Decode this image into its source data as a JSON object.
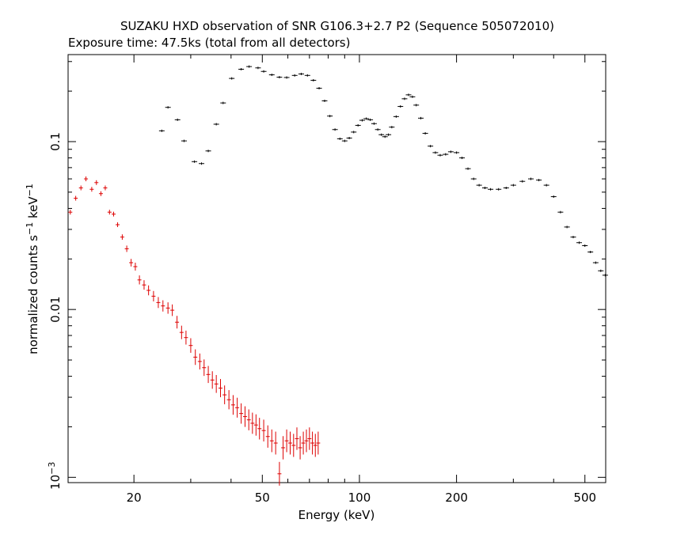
{
  "chart_data": {
    "type": "scatter",
    "title": "SUZAKU HXD observation of SNR G106.3+2.7 P2 (Sequence 505072010)",
    "subtitle": "Exposure time: 47.5ks (total from all detectors)",
    "xlabel": "Energy (keV)",
    "ylabel_parts": [
      "normalized counts s",
      "−1",
      " keV",
      "−1"
    ],
    "x_scale": "log",
    "y_scale": "log",
    "xlim": [
      12.5,
      580
    ],
    "ylim": [
      0.00093,
      0.33
    ],
    "x_ticks": [
      {
        "value": 20,
        "label": "20"
      },
      {
        "value": 50,
        "label": "50"
      },
      {
        "value": 100,
        "label": "100"
      },
      {
        "value": 200,
        "label": "200"
      },
      {
        "value": 500,
        "label": "500"
      }
    ],
    "y_ticks": [
      {
        "value": 0.1,
        "label": "0.1"
      },
      {
        "value": 0.01,
        "label": "0.01"
      }
    ],
    "y_tick_power": {
      "value": 0.001,
      "base": "10",
      "exp": "−3"
    },
    "series": [
      {
        "color": "#000000",
        "points": [
          [
            24.4,
            0.116
          ],
          [
            25.5,
            0.16
          ],
          [
            27.3,
            0.135
          ],
          [
            28.6,
            0.101
          ],
          [
            30.8,
            0.076
          ],
          [
            32.4,
            0.074
          ],
          [
            34.0,
            0.088
          ],
          [
            36.0,
            0.127
          ],
          [
            37.8,
            0.17
          ],
          [
            40.2,
            0.238
          ],
          [
            43.0,
            0.27
          ],
          [
            45.5,
            0.28
          ],
          [
            48.5,
            0.275
          ],
          [
            50.5,
            0.262
          ],
          [
            53.5,
            0.25
          ],
          [
            56.5,
            0.242
          ],
          [
            59.5,
            0.241
          ],
          [
            63.0,
            0.248
          ],
          [
            66.0,
            0.253
          ],
          [
            69.0,
            0.248
          ],
          [
            72.0,
            0.232
          ],
          [
            75.0,
            0.208
          ],
          [
            78.0,
            0.175
          ],
          [
            81.0,
            0.142
          ],
          [
            84.0,
            0.118
          ],
          [
            87.0,
            0.104
          ],
          [
            90.0,
            0.101
          ],
          [
            93.0,
            0.105
          ],
          [
            96.0,
            0.114
          ],
          [
            99.0,
            0.125
          ],
          [
            102.0,
            0.134
          ],
          [
            105.0,
            0.137
          ],
          [
            108.0,
            0.135
          ],
          [
            111.0,
            0.128
          ],
          [
            114.0,
            0.118
          ],
          [
            117.0,
            0.11
          ],
          [
            120.0,
            0.107
          ],
          [
            123.0,
            0.11
          ],
          [
            126.0,
            0.122
          ],
          [
            130.0,
            0.141
          ],
          [
            134.0,
            0.162
          ],
          [
            138.0,
            0.18
          ],
          [
            142.0,
            0.19
          ],
          [
            146.0,
            0.185
          ],
          [
            150.0,
            0.165
          ],
          [
            155.0,
            0.138
          ],
          [
            160.0,
            0.112
          ],
          [
            166.0,
            0.094
          ],
          [
            172.0,
            0.086
          ],
          [
            178.0,
            0.083
          ],
          [
            185.0,
            0.084
          ],
          [
            192.0,
            0.087
          ],
          [
            200.0,
            0.086
          ],
          [
            208.0,
            0.08
          ],
          [
            217.0,
            0.069
          ],
          [
            226.0,
            0.06
          ],
          [
            235.0,
            0.055
          ],
          [
            245.0,
            0.053
          ],
          [
            255.0,
            0.052
          ],
          [
            270.0,
            0.052
          ],
          [
            285.0,
            0.053
          ],
          [
            300.0,
            0.055
          ],
          [
            320.0,
            0.058
          ],
          [
            340.0,
            0.06
          ],
          [
            360.0,
            0.059
          ],
          [
            380.0,
            0.055
          ],
          [
            400.0,
            0.047
          ],
          [
            420.0,
            0.038
          ],
          [
            440.0,
            0.031
          ],
          [
            460.0,
            0.027
          ],
          [
            480.0,
            0.025
          ],
          [
            500.0,
            0.024
          ],
          [
            520.0,
            0.022
          ],
          [
            540.0,
            0.019
          ],
          [
            560.0,
            0.017
          ],
          [
            578.0,
            0.016
          ]
        ]
      },
      {
        "color": "#dd0000",
        "points": [
          [
            12.7,
            0.038
          ],
          [
            13.2,
            0.046
          ],
          [
            13.7,
            0.053
          ],
          [
            14.2,
            0.06
          ],
          [
            14.8,
            0.052
          ],
          [
            15.3,
            0.057
          ],
          [
            15.8,
            0.049
          ],
          [
            16.3,
            0.053
          ],
          [
            16.8,
            0.038
          ],
          [
            17.3,
            0.037
          ],
          [
            17.8,
            0.032
          ],
          [
            18.4,
            0.027
          ],
          [
            19.0,
            0.023
          ],
          [
            19.6,
            0.019
          ],
          [
            20.2,
            0.018
          ],
          [
            20.8,
            0.015
          ],
          [
            21.5,
            0.014
          ],
          [
            22.2,
            0.013
          ],
          [
            23.0,
            0.012
          ],
          [
            23.8,
            0.011
          ],
          [
            24.6,
            0.0105
          ],
          [
            25.5,
            0.0102
          ],
          [
            26.3,
            0.0099
          ],
          [
            27.2,
            0.0084
          ],
          [
            28.1,
            0.0073
          ],
          [
            29.0,
            0.0068
          ],
          [
            30.0,
            0.0061
          ],
          [
            31.0,
            0.0052
          ],
          [
            32.0,
            0.0049
          ],
          [
            33.0,
            0.0045
          ],
          [
            34.0,
            0.0041
          ],
          [
            35.0,
            0.0038
          ],
          [
            36.0,
            0.0036
          ],
          [
            37.1,
            0.0034
          ],
          [
            38.2,
            0.0031
          ],
          [
            39.4,
            0.0029
          ],
          [
            40.6,
            0.0027
          ],
          [
            41.8,
            0.0026
          ],
          [
            43.0,
            0.0024
          ],
          [
            44.2,
            0.0023
          ],
          [
            45.4,
            0.0022
          ],
          [
            46.6,
            0.0021
          ],
          [
            47.8,
            0.00205
          ],
          [
            49.0,
            0.00195
          ],
          [
            50.5,
            0.0019
          ],
          [
            52.0,
            0.00175
          ],
          [
            53.5,
            0.00165
          ],
          [
            55.0,
            0.0016
          ],
          [
            56.5,
            0.00105
          ],
          [
            58.0,
            0.0015
          ],
          [
            59.5,
            0.00165
          ],
          [
            61.0,
            0.0016
          ],
          [
            62.5,
            0.00155
          ],
          [
            64.0,
            0.0017
          ],
          [
            65.5,
            0.0015
          ],
          [
            67.0,
            0.0016
          ],
          [
            68.5,
            0.00165
          ],
          [
            70.0,
            0.0017
          ],
          [
            71.5,
            0.0016
          ],
          [
            73.0,
            0.00155
          ],
          [
            74.5,
            0.0016
          ]
        ]
      }
    ],
    "grid": false,
    "legend": "none"
  }
}
